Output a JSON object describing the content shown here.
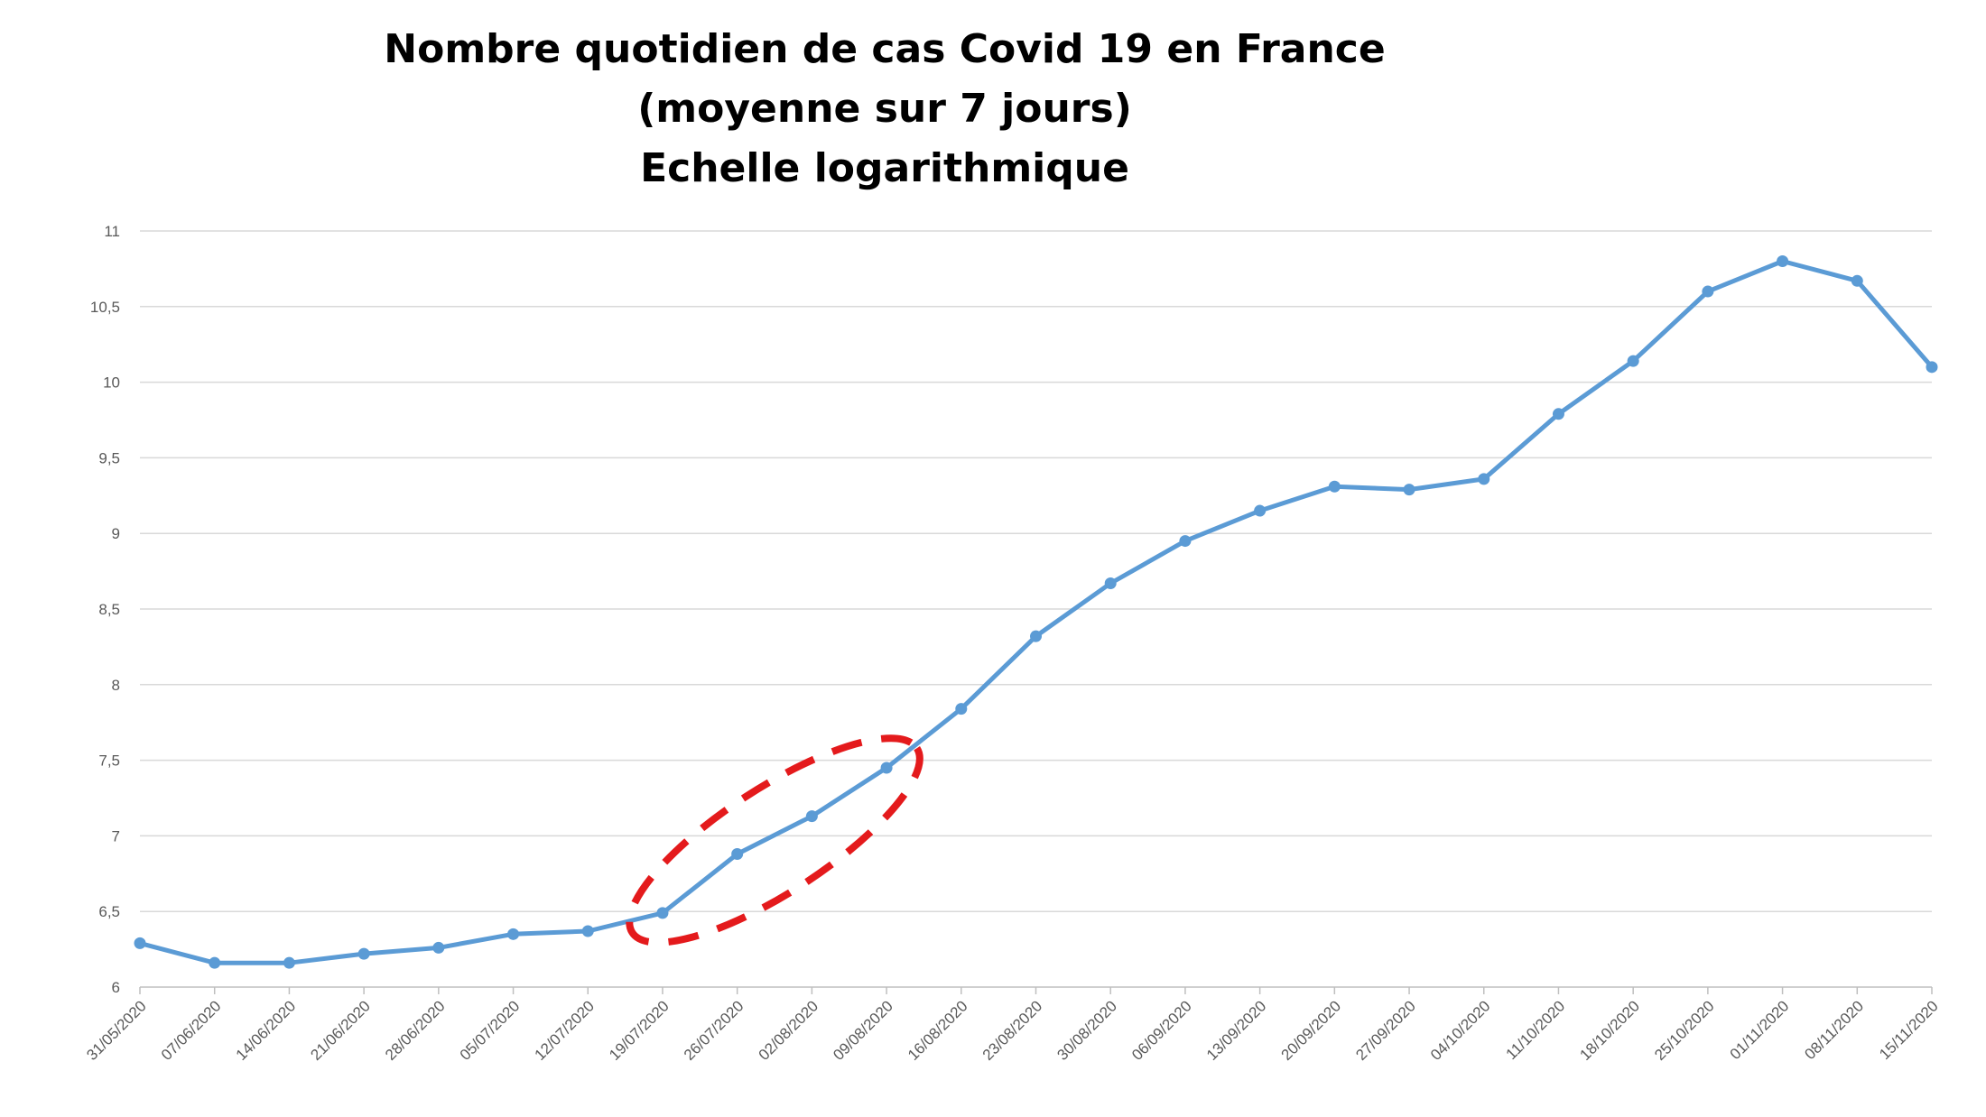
{
  "chart_data": {
    "type": "line",
    "title": [
      "Nombre quotidien de cas Covid 19 en France",
      "(moyenne sur 7 jours)",
      "Echelle logarithmique"
    ],
    "xlabel": "",
    "ylabel": "",
    "ylim": [
      6,
      11
    ],
    "y_ticks": [
      "11",
      "10,5",
      "10",
      "9,5",
      "9",
      "8,5",
      "8",
      "7,5",
      "7",
      "6,5",
      "6"
    ],
    "grid": "horizontal",
    "legend": "none",
    "categories": [
      "31/05/2020",
      "07/06/2020",
      "14/06/2020",
      "21/06/2020",
      "28/06/2020",
      "05/07/2020",
      "12/07/2020",
      "19/07/2020",
      "26/07/2020",
      "02/08/2020",
      "09/08/2020",
      "16/08/2020",
      "23/08/2020",
      "30/08/2020",
      "06/09/2020",
      "13/09/2020",
      "20/09/2020",
      "27/09/2020",
      "04/10/2020",
      "11/10/2020",
      "18/10/2020",
      "25/10/2020",
      "01/11/2020",
      "08/11/2020",
      "15/11/2020"
    ],
    "series": [
      {
        "values": [
          6.29,
          6.16,
          6.16,
          6.22,
          6.26,
          6.35,
          6.37,
          6.49,
          6.88,
          7.13,
          7.45,
          7.84,
          8.32,
          8.67,
          8.95,
          9.15,
          9.31,
          9.29,
          9.36,
          9.79,
          10.14,
          10.6,
          10.8,
          10.67,
          10.1
        ],
        "color": "#5b9bd5"
      }
    ],
    "annotation": {
      "shape": "dashed-ellipse",
      "color": "#e41a1c",
      "x_range": [
        "19/07/2020",
        "09/08/2020"
      ]
    }
  }
}
